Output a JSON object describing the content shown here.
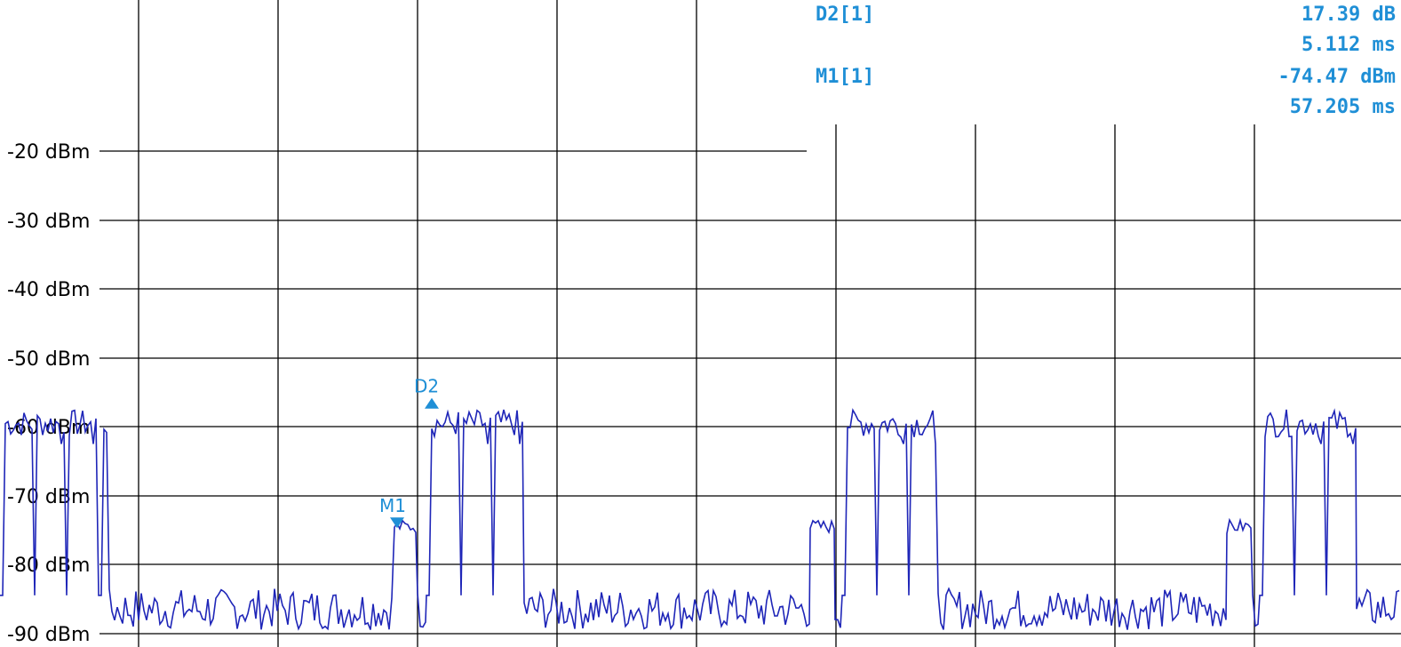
{
  "chart_data": {
    "type": "line",
    "title": "",
    "xlabel": "",
    "ylabel": "",
    "y_unit": "dBm",
    "ylim": [
      -92,
      2
    ],
    "yticks": [
      -20,
      -30,
      -40,
      -50,
      -60,
      -70,
      -80,
      -90
    ],
    "ytick_labels": [
      "-20 dBm",
      "-30 dBm",
      "-40 dBm",
      "-50 dBm",
      "-60 dBm",
      "-70 dBm",
      "-80 dBm",
      "-90 dBm"
    ],
    "grid": true,
    "noise_floor_dbm": -86.5,
    "burst_level_dbm": -59.5,
    "pre_burst_level_dbm": -74.5,
    "series": [
      {
        "color": "#1f26b8",
        "segments": [
          {
            "from": 0,
            "to": 123,
            "level": "burst"
          },
          {
            "from": 123,
            "to": 444,
            "level": "noise"
          },
          {
            "from": 444,
            "to": 470,
            "level": "pre"
          },
          {
            "from": 470,
            "to": 480,
            "level": "noise"
          },
          {
            "from": 480,
            "to": 590,
            "level": "burst"
          },
          {
            "from": 590,
            "to": 912,
            "level": "noise"
          },
          {
            "from": 912,
            "to": 940,
            "level": "pre"
          },
          {
            "from": 940,
            "to": 948,
            "level": "noise"
          },
          {
            "from": 948,
            "to": 1056,
            "level": "burst"
          },
          {
            "from": 1056,
            "to": 1381,
            "level": "noise"
          },
          {
            "from": 1381,
            "to": 1410,
            "level": "pre"
          },
          {
            "from": 1410,
            "to": 1418,
            "level": "noise"
          },
          {
            "from": 1418,
            "to": 1527,
            "level": "burst"
          },
          {
            "from": 1527,
            "to": 1577,
            "level": "noise"
          }
        ]
      }
    ],
    "markers": [
      {
        "label": "M1",
        "direction": "down",
        "x": 447,
        "level_dbm": -74.47
      },
      {
        "label": "D2",
        "direction": "up",
        "x": 486,
        "level_dbm": -57.1
      }
    ]
  },
  "marker_table": {
    "color": "#1f8fd6",
    "rows": [
      {
        "name": "D2[1]",
        "value1": "17.39 dB",
        "value2": "5.112 ms"
      },
      {
        "name": "M1[1]",
        "value1": "-74.47 dBm",
        "value2": "57.205 ms"
      }
    ]
  }
}
